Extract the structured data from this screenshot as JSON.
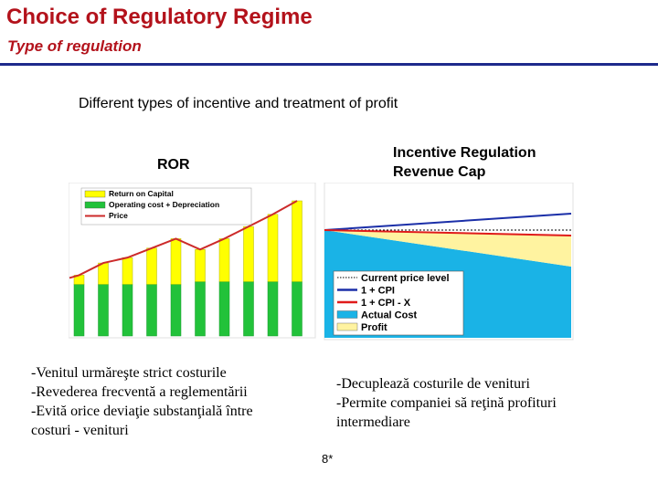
{
  "slide": {
    "title": "Choice of Regulatory Regime",
    "subtitle": "Type of regulation",
    "heading": "Different types of incentive and treatment of profit",
    "slide_number": "8*",
    "accent_color": "#b3121b",
    "rule_color": "#1e2a8c"
  },
  "ror_panel": {
    "label": "ROR",
    "legend": [
      {
        "label": "Return on Capital",
        "color": "#ffff00",
        "kind": "box"
      },
      {
        "label": "Operating cost + Depreciation",
        "color": "#22c23a",
        "kind": "box"
      },
      {
        "label": "Price",
        "color": "#cc2a2a",
        "kind": "line"
      }
    ],
    "notes": [
      "-Venitul urmăreşte strict costurile",
      "-Revederea frecventă a reglementării",
      "-Evită orice deviaţie substanţială între",
      "costuri - venituri"
    ]
  },
  "incentive_panel": {
    "label_line1": "Incentive Regulation",
    "label_line2": "Revenue Cap",
    "legend": [
      {
        "label": "Current price level",
        "color": "#000000",
        "kind": "dotted"
      },
      {
        "label": "1 + CPI",
        "color": "#1b2fa8",
        "kind": "line"
      },
      {
        "label": "1 + CPI - X",
        "color": "#e01b1b",
        "kind": "line"
      },
      {
        "label": "Actual Cost",
        "color": "#1ab3e6",
        "kind": "box"
      },
      {
        "label": "Profit",
        "color": "#fff3a0",
        "kind": "box"
      }
    ],
    "notes": [
      "-Decuplează costurile de venituri",
      "-Permite companiei să reţină profituri",
      "intermediare"
    ]
  },
  "chart_data": [
    {
      "type": "bar",
      "series": [
        {
          "name": "Operating cost + Depreciation",
          "values": [
            0.38,
            0.38,
            0.38,
            0.38,
            0.38,
            0.4,
            0.4,
            0.4,
            0.4,
            0.4
          ]
        },
        {
          "name": "Return on Capital",
          "values": [
            0.45,
            0.54,
            0.58,
            0.65,
            0.72,
            0.64,
            0.72,
            0.81,
            0.9,
            1.0
          ]
        },
        {
          "name": "Price",
          "values": [
            0.45,
            0.54,
            0.58,
            0.65,
            0.72,
            0.64,
            0.72,
            0.81,
            0.9,
            1.0
          ]
        }
      ]
    },
    {
      "type": "area",
      "x": [
        0,
        1
      ],
      "series": [
        {
          "name": "Current price level",
          "values": [
            1.0,
            1.0
          ]
        },
        {
          "name": "1 + CPI",
          "values": [
            1.0,
            1.18
          ]
        },
        {
          "name": "1 + CPI - X",
          "values": [
            1.0,
            0.94
          ]
        },
        {
          "name": "Actual Cost",
          "values": [
            1.0,
            0.6
          ]
        }
      ]
    }
  ]
}
